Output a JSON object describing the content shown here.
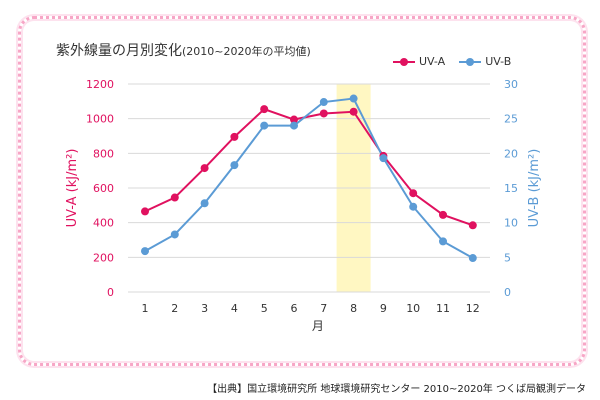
{
  "title_main": "紫外線量の月別変化",
  "title_sub": "(2010~2020年の平均値)",
  "source": "【出典】国立環境研究所 地球環境研究センター 2010~2020年 つくば局観測データ",
  "colors": {
    "uva": "#e0115f",
    "uvb": "#5b9bd5",
    "highlight": "#fff7c2",
    "grid": "#d9d9d9"
  },
  "chart_data": {
    "type": "line",
    "title": "紫外線量の月別変化(2010~2020年の平均値)",
    "xlabel": "月",
    "ylabel": "UV-A (kJ/m²)",
    "y2label": "UV-B (kJ/m²)",
    "x": [
      1,
      2,
      3,
      4,
      5,
      6,
      7,
      8,
      9,
      10,
      11,
      12
    ],
    "ylim": [
      0,
      1200
    ],
    "y2lim": [
      0,
      30
    ],
    "yticks": [
      0,
      200,
      400,
      600,
      800,
      1000,
      1200
    ],
    "y2ticks": [
      0,
      5,
      10,
      15,
      20,
      25,
      30
    ],
    "highlight_x": 8,
    "legend_position": "top-right",
    "grid": true,
    "series": [
      {
        "name": "UV-A",
        "axis": "left",
        "values": [
          465,
          545,
          715,
          895,
          1055,
          995,
          1030,
          1040,
          785,
          570,
          445,
          385
        ]
      },
      {
        "name": "UV-B",
        "axis": "right",
        "values": [
          5.9,
          8.3,
          12.8,
          18.3,
          24.0,
          24.0,
          27.4,
          27.9,
          19.3,
          12.3,
          7.3,
          4.9
        ]
      }
    ]
  }
}
